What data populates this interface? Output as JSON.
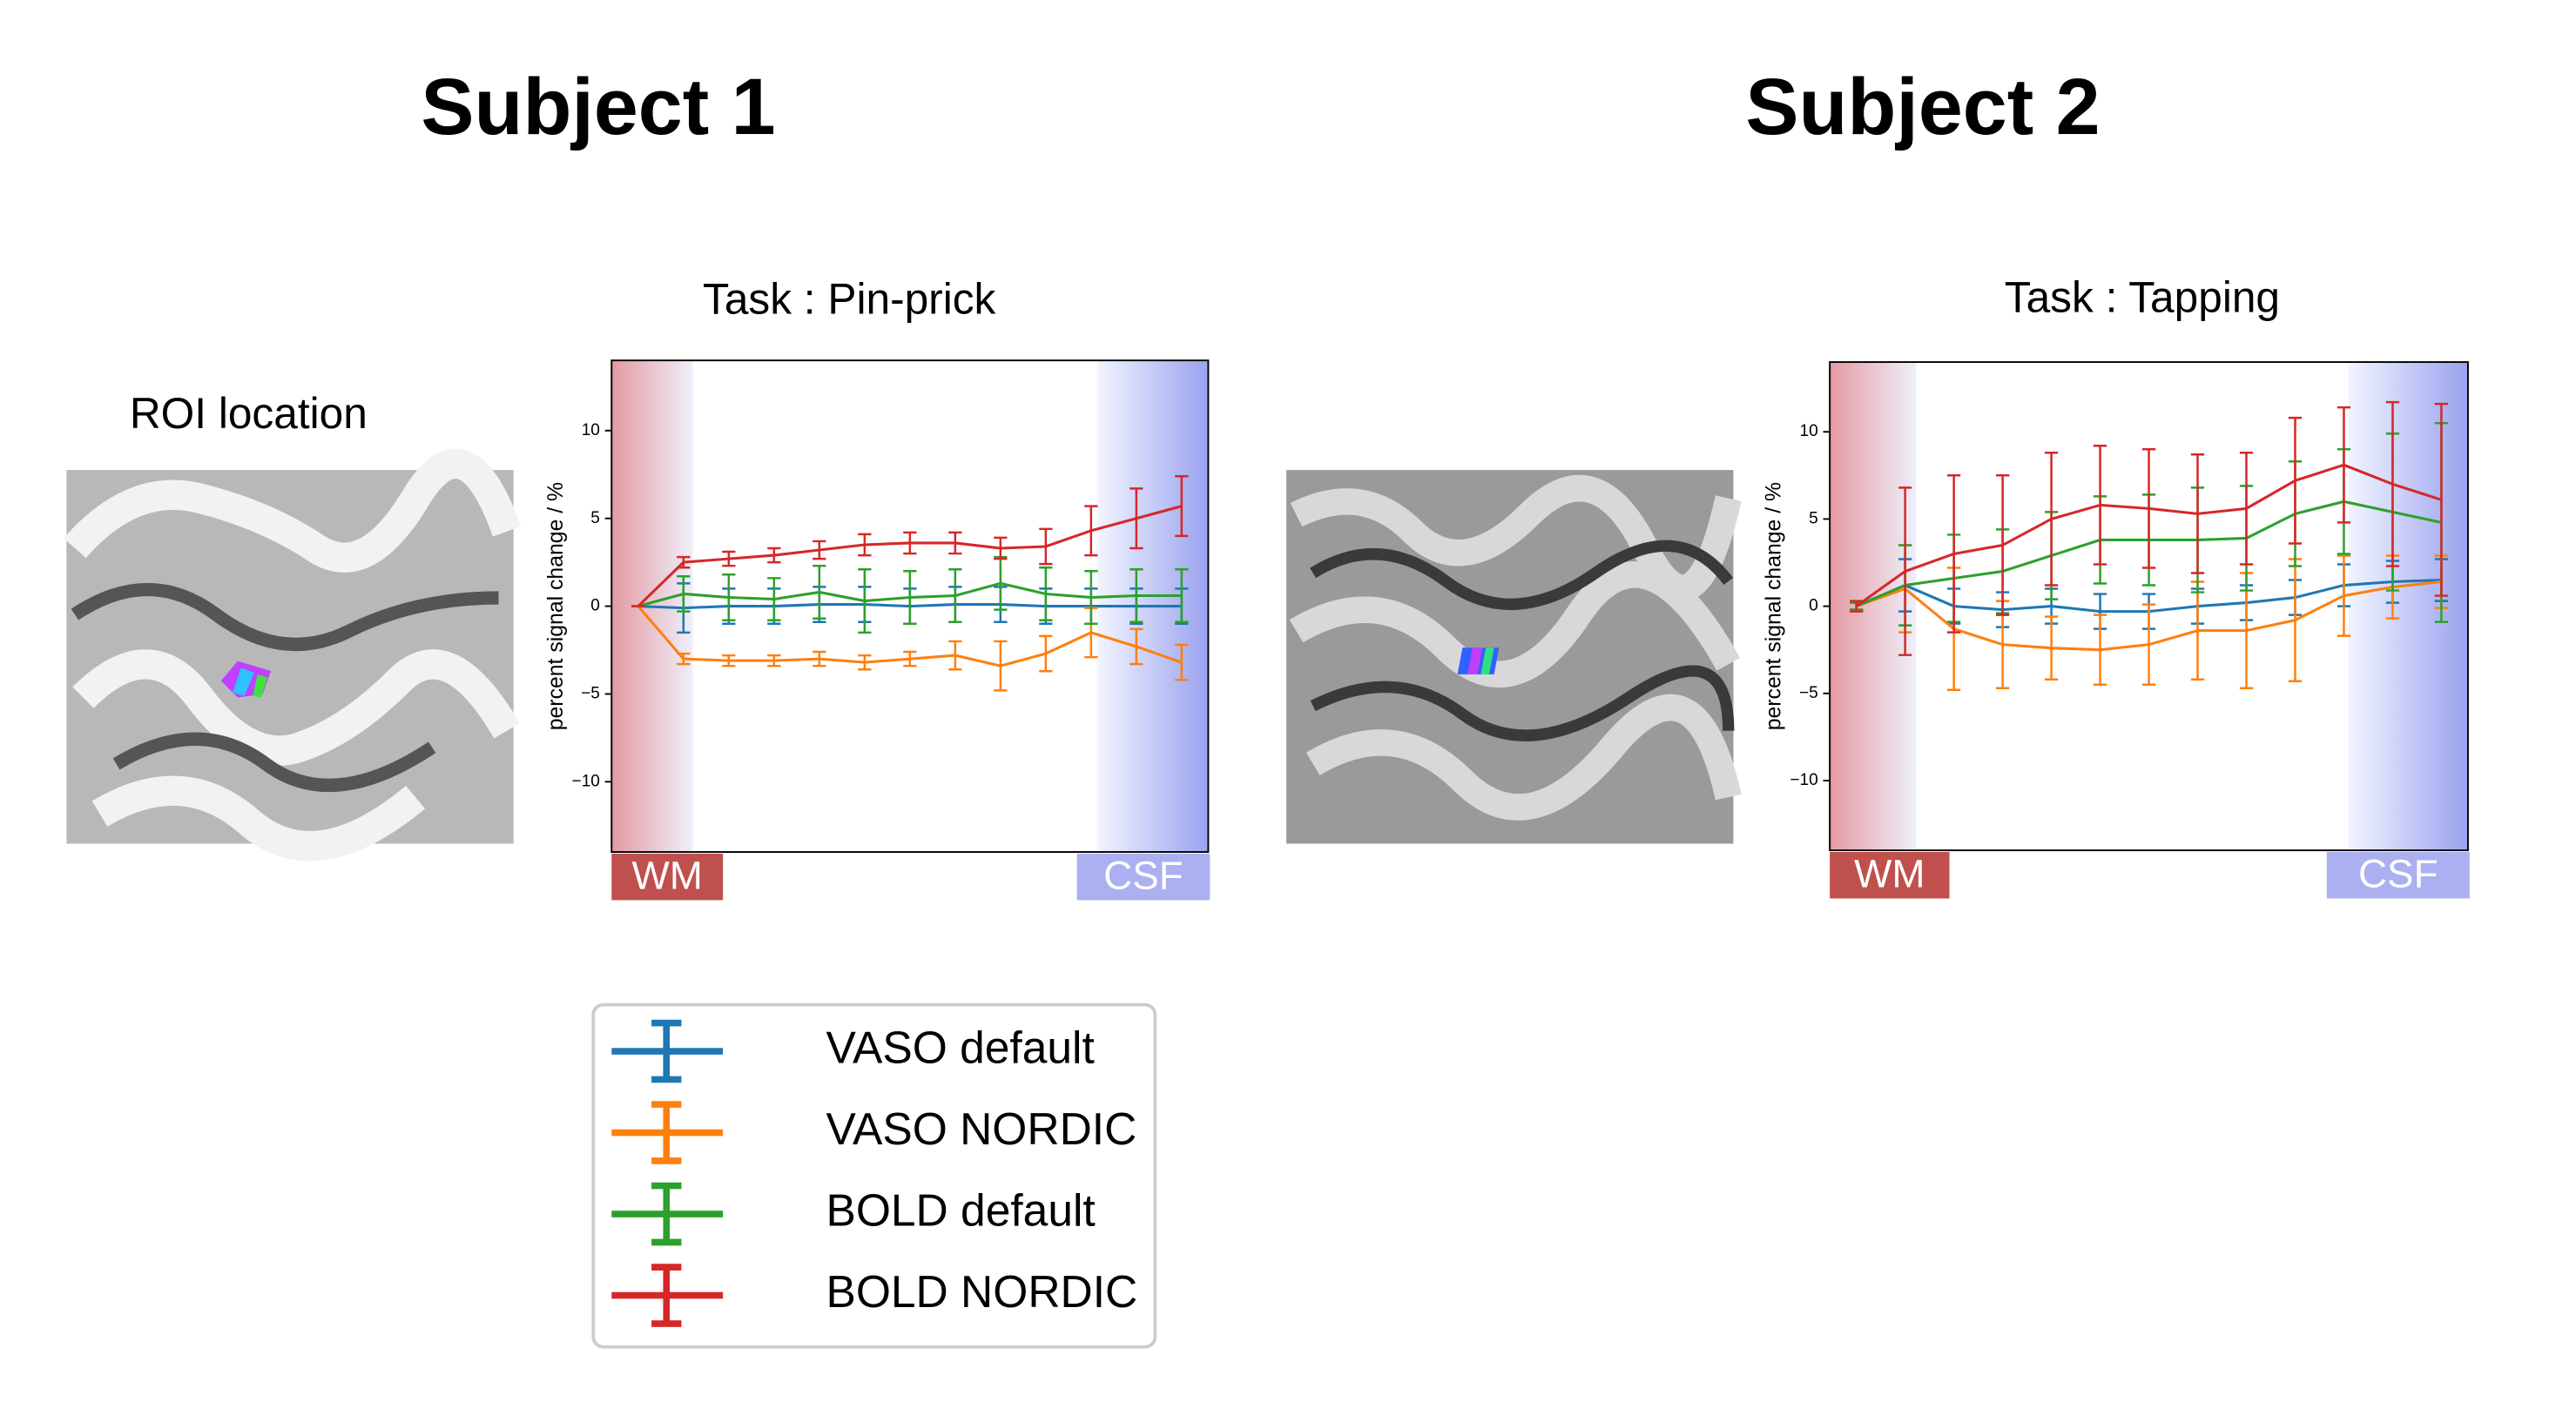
{
  "page": {
    "subjects": [
      "Subject 1",
      "Subject 2"
    ],
    "roi_label": "ROI location"
  },
  "chart_data": [
    {
      "type": "line",
      "title": "Task : Pin-prick",
      "ylabel": "percent signal change / %",
      "categories": [
        null,
        null,
        null,
        null,
        null,
        null,
        null,
        null,
        null,
        null,
        null,
        null,
        null
      ],
      "ylim": [
        -14,
        14
      ],
      "yticks": [
        {
          "value": -10,
          "label": "−10"
        },
        {
          "value": -5,
          "label": "−5"
        },
        0,
        5,
        10
      ],
      "annotations": [
        "WM",
        "CSF"
      ],
      "series": [
        {
          "name": "VASO default",
          "color": "#1f77b4",
          "values": [
            0,
            -0.1,
            0,
            0,
            0.1,
            0.1,
            0,
            0.1,
            0.1,
            0,
            0,
            0,
            0
          ],
          "errors": [
            0,
            1.4,
            1,
            1,
            1,
            1,
            1,
            1,
            1,
            1,
            1,
            1,
            1
          ]
        },
        {
          "name": "VASO NORDIC",
          "color": "#ff7f0e",
          "values": [
            0,
            -3.0,
            -3.1,
            -3.1,
            -3.0,
            -3.2,
            -3.0,
            -2.8,
            -3.4,
            -2.7,
            -1.5,
            -2.3,
            -3.2
          ],
          "errors": [
            0,
            0.3,
            0.3,
            0.3,
            0.4,
            0.4,
            0.4,
            0.8,
            1.4,
            1.0,
            1.4,
            1.0,
            1.0
          ]
        },
        {
          "name": "BOLD default",
          "color": "#2ca02c",
          "values": [
            0,
            0.7,
            0.5,
            0.4,
            0.8,
            0.3,
            0.5,
            0.6,
            1.3,
            0.7,
            0.5,
            0.6,
            0.6
          ],
          "errors": [
            0,
            1.0,
            1.3,
            1.2,
            1.5,
            1.8,
            1.5,
            1.5,
            1.5,
            1.5,
            1.5,
            1.5,
            1.5
          ]
        },
        {
          "name": "BOLD NORDIC",
          "color": "#d62728",
          "values": [
            0,
            2.5,
            2.7,
            2.9,
            3.2,
            3.5,
            3.6,
            3.6,
            3.3,
            3.4,
            4.3,
            5.0,
            5.7
          ],
          "errors": [
            0,
            0.3,
            0.4,
            0.4,
            0.5,
            0.6,
            0.6,
            0.6,
            0.6,
            1.0,
            1.4,
            1.7,
            1.7
          ]
        }
      ]
    },
    {
      "type": "line",
      "title": "Task : Tapping",
      "ylabel": "percent signal change / %",
      "categories": [
        null,
        null,
        null,
        null,
        null,
        null,
        null,
        null,
        null,
        null,
        null,
        null,
        null
      ],
      "ylim": [
        -14,
        14
      ],
      "yticks": [
        {
          "value": -10,
          "label": "−10"
        },
        {
          "value": -5,
          "label": "−5"
        },
        0,
        5,
        10
      ],
      "annotations": [
        "WM",
        "CSF"
      ],
      "series": [
        {
          "name": "VASO default",
          "color": "#1f77b4",
          "values": [
            0,
            1.2,
            0,
            -0.2,
            0,
            -0.3,
            -0.3,
            0,
            0.2,
            0.5,
            1.2,
            1.4,
            1.5
          ],
          "errors": [
            0.2,
            1.5,
            1,
            1,
            1,
            1,
            1,
            1,
            1,
            1,
            1.2,
            1.2,
            1.2
          ]
        },
        {
          "name": "VASO NORDIC",
          "color": "#ff7f0e",
          "values": [
            0,
            1.0,
            -1.3,
            -2.2,
            -2.4,
            -2.5,
            -2.2,
            -1.4,
            -1.4,
            -0.8,
            0.6,
            1.1,
            1.4
          ],
          "errors": [
            0.2,
            2.5,
            3.5,
            2.5,
            1.8,
            2,
            2.3,
            2.8,
            3.3,
            3.5,
            2.3,
            1.8,
            1.5
          ]
        },
        {
          "name": "BOLD default",
          "color": "#2ca02c",
          "values": [
            0,
            1.2,
            1.6,
            2.0,
            2.9,
            3.8,
            3.8,
            3.8,
            3.9,
            5.3,
            6.0,
            5.4,
            4.8
          ],
          "errors": [
            0.2,
            2.3,
            2.5,
            2.4,
            2.5,
            2.5,
            2.6,
            3.0,
            3.0,
            3.0,
            3.0,
            4.5,
            5.7
          ]
        },
        {
          "name": "BOLD NORDIC",
          "color": "#d62728",
          "values": [
            0,
            2.0,
            3.0,
            3.5,
            5.0,
            5.8,
            5.6,
            5.3,
            5.6,
            7.2,
            8.1,
            7.0,
            6.1
          ],
          "errors": [
            0.3,
            4.8,
            4.5,
            4.0,
            3.8,
            3.4,
            3.4,
            3.4,
            3.2,
            3.6,
            3.3,
            4.7,
            5.5
          ]
        }
      ]
    }
  ]
}
